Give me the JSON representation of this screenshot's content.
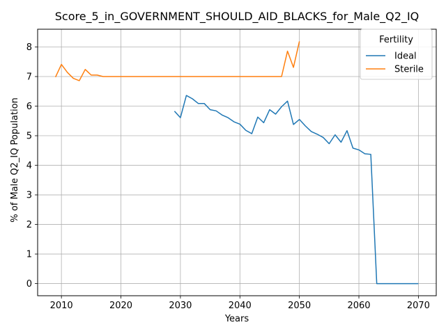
{
  "chart_data": {
    "type": "line",
    "title": "Score_5_in_GOVERNMENT_SHOULD_AID_BLACKS_for_Male_Q2_IQ",
    "xlabel": "Years",
    "ylabel": "% of Male Q2_IQ Population",
    "xlim": [
      2006,
      2073
    ],
    "ylim": [
      -0.41,
      8.6
    ],
    "xticks": [
      2010,
      2020,
      2030,
      2040,
      2050,
      2060,
      2070
    ],
    "yticks": [
      0,
      1,
      2,
      3,
      4,
      5,
      6,
      7,
      8
    ],
    "grid": true,
    "legend": {
      "title": "Fertility",
      "placement": "top-right"
    },
    "series": [
      {
        "name": "Ideal",
        "color": "#1f77b4",
        "x": [
          2029,
          2030,
          2031,
          2032,
          2033,
          2034,
          2035,
          2036,
          2037,
          2038,
          2039,
          2040,
          2041,
          2042,
          2043,
          2044,
          2045,
          2046,
          2047,
          2048,
          2049,
          2050,
          2051,
          2052,
          2053,
          2054,
          2055,
          2056,
          2057,
          2058,
          2059,
          2060,
          2061,
          2062,
          2063,
          2064,
          2065,
          2066,
          2067,
          2068,
          2069,
          2070
        ],
        "y": [
          5.83,
          5.61,
          6.36,
          6.25,
          6.09,
          6.09,
          5.88,
          5.84,
          5.7,
          5.61,
          5.47,
          5.39,
          5.18,
          5.07,
          5.63,
          5.44,
          5.88,
          5.73,
          5.98,
          6.17,
          5.38,
          5.55,
          5.33,
          5.14,
          5.05,
          4.94,
          4.73,
          5.03,
          4.78,
          5.17,
          4.58,
          4.52,
          4.39,
          4.37,
          0.0,
          0.0,
          0.0,
          0.0,
          0.0,
          0.0,
          0.0,
          0.0
        ]
      },
      {
        "name": "Sterile",
        "color": "#ff7f0e",
        "x": [
          2009,
          2010,
          2011,
          2012,
          2013,
          2014,
          2015,
          2016,
          2017,
          2018,
          2019,
          2020,
          2021,
          2022,
          2023,
          2024,
          2025,
          2026,
          2027,
          2028,
          2029,
          2030,
          2031,
          2032,
          2033,
          2034,
          2035,
          2036,
          2037,
          2038,
          2039,
          2040,
          2041,
          2042,
          2043,
          2044,
          2045,
          2046,
          2047,
          2048,
          2049,
          2050
        ],
        "y": [
          6.98,
          7.41,
          7.14,
          6.94,
          6.86,
          7.24,
          7.05,
          7.05,
          7.0,
          7.0,
          7.0,
          7.0,
          7.0,
          7.0,
          7.0,
          7.0,
          7.0,
          7.0,
          7.0,
          7.0,
          7.0,
          7.0,
          7.0,
          7.0,
          7.0,
          7.0,
          7.0,
          7.0,
          7.0,
          7.0,
          7.0,
          7.0,
          7.0,
          7.0,
          7.0,
          7.0,
          7.0,
          7.0,
          7.0,
          7.86,
          7.31,
          8.19
        ]
      }
    ]
  }
}
